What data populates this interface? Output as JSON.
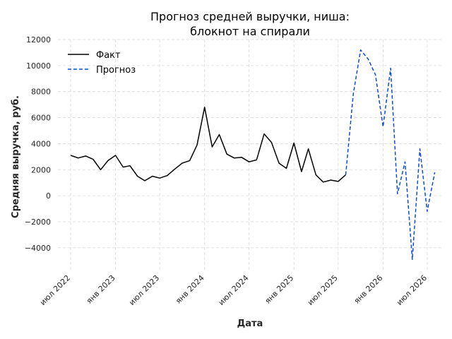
{
  "chart_data": {
    "type": "line",
    "title_lines": [
      "Прогноз средней выручки, ниша:",
      "блокнот на спирали"
    ],
    "xlabel": "Дата",
    "ylabel": "Средняя выручка, руб.",
    "ylim": [
      -5800,
      12000
    ],
    "xlim": [
      "2022-05-10",
      "2026-08-31"
    ],
    "y_ticks": [
      -4000,
      -2000,
      0,
      2000,
      4000,
      6000,
      8000,
      10000,
      12000
    ],
    "y_tick_labels": [
      "−4000",
      "−2000",
      "0",
      "2000",
      "4000",
      "6000",
      "8000",
      "10000",
      "12000"
    ],
    "x_ticks": [
      "2022-07-01",
      "2023-01-01",
      "2023-07-01",
      "2024-01-01",
      "2024-07-01",
      "2025-01-01",
      "2025-07-01",
      "2026-01-01",
      "2026-07-01"
    ],
    "x_tick_labels": [
      "июл 2022",
      "янв 2023",
      "июл 2023",
      "янв 2024",
      "июл 2024",
      "янв 2025",
      "июл 2025",
      "янв 2026",
      "июл 2026"
    ],
    "grid": true,
    "legend_position": "top-left",
    "series": [
      {
        "name": "Факт",
        "color": "#000000",
        "style": "solid",
        "x": [
          "2022-07-01",
          "2022-08-01",
          "2022-09-01",
          "2022-10-01",
          "2022-11-01",
          "2022-12-01",
          "2023-01-01",
          "2023-02-01",
          "2023-03-01",
          "2023-04-01",
          "2023-05-01",
          "2023-06-01",
          "2023-07-01",
          "2023-08-01",
          "2023-09-01",
          "2023-10-01",
          "2023-11-01",
          "2023-12-01",
          "2024-01-01",
          "2024-02-01",
          "2024-03-01",
          "2024-04-01",
          "2024-05-01",
          "2024-06-01",
          "2024-07-01",
          "2024-08-01",
          "2024-09-01",
          "2024-10-01",
          "2024-11-01",
          "2024-12-01",
          "2025-01-01",
          "2025-02-01",
          "2025-03-01",
          "2025-04-01",
          "2025-05-01",
          "2025-06-01",
          "2025-07-01",
          "2025-08-01"
        ],
        "y": [
          3100,
          2900,
          3050,
          2800,
          2000,
          2700,
          3100,
          2200,
          2300,
          1500,
          1150,
          1500,
          1350,
          1550,
          2050,
          2500,
          2700,
          3900,
          6800,
          3750,
          4700,
          3200,
          2900,
          2950,
          2600,
          2750,
          4750,
          4100,
          2500,
          2100,
          4050,
          1850,
          3600,
          1600,
          1050,
          1200,
          1100,
          1600
        ]
      },
      {
        "name": "Прогноз",
        "color": "#0b4be0",
        "style": "dashed",
        "x": [
          "2025-08-01",
          "2025-09-01",
          "2025-10-01",
          "2025-11-01",
          "2025-12-01",
          "2026-01-01",
          "2026-02-01",
          "2026-03-01",
          "2026-04-01",
          "2026-05-01",
          "2026-06-01",
          "2026-07-01",
          "2026-08-01"
        ],
        "y": [
          1600,
          7800,
          11200,
          10500,
          9300,
          5300,
          9800,
          150,
          2600,
          -4900,
          3600,
          -1200,
          1800
        ]
      }
    ]
  }
}
